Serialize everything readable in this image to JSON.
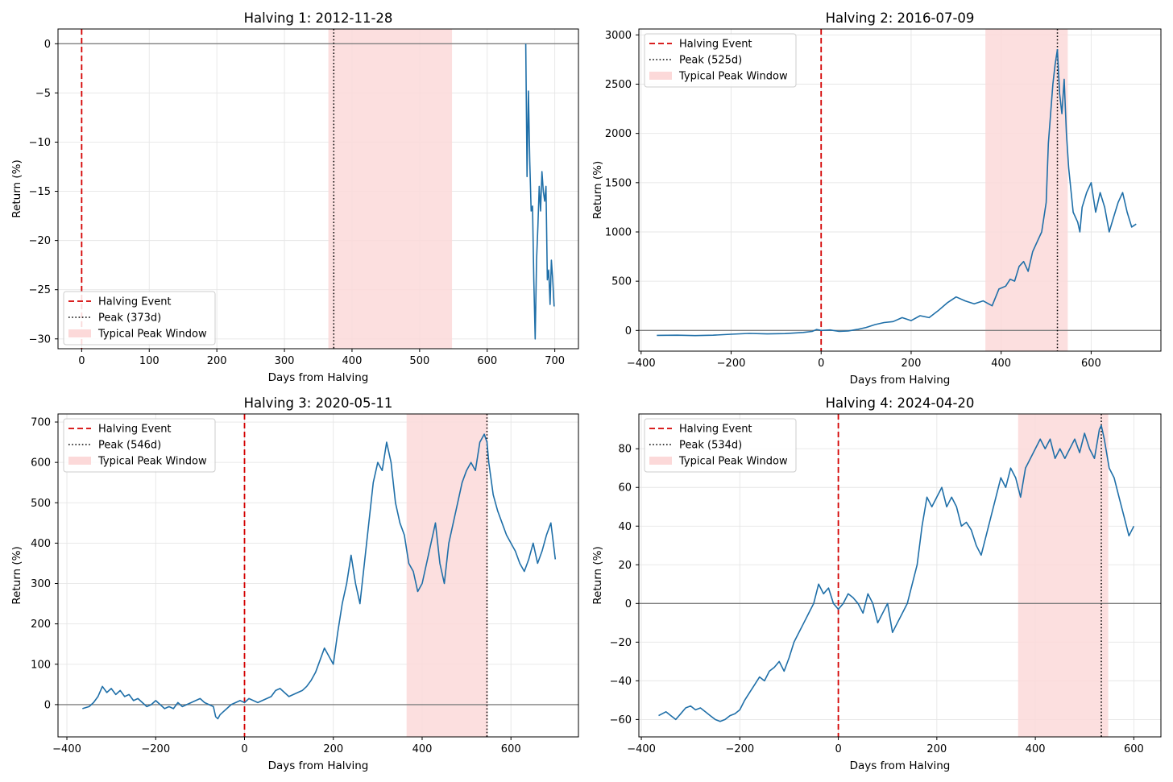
{
  "figure": {
    "colors": {
      "series": "#1f6fa8",
      "halving_line": "#d40000",
      "peak_line": "#000000",
      "window_fill": "#fcd9d9",
      "zero_line": "#808080",
      "grid": "#e6e6e6"
    }
  },
  "chart_data": [
    {
      "type": "line",
      "title": "Halving 1: 2012-11-28",
      "xlabel": "Days from Halving",
      "ylabel": "Return (%)",
      "xlim": [
        -35,
        735
      ],
      "ylim": [
        -31,
        1.5
      ],
      "xticks": [
        0,
        100,
        200,
        300,
        400,
        500,
        600,
        700
      ],
      "yticks": [
        0,
        -5,
        -10,
        -15,
        -20,
        -25,
        -30
      ],
      "grid": true,
      "legend": {
        "placement": "lower-left",
        "labels": [
          "Halving Event",
          "Peak (373d)",
          "Typical Peak Window"
        ]
      },
      "halving_day": 0,
      "peak_day": 373,
      "peak_window": [
        365,
        548
      ],
      "series": [
        {
          "x": [
            657,
            659,
            661,
            663,
            665,
            667,
            669,
            671,
            673,
            675,
            677,
            679,
            681,
            683,
            685,
            687,
            689,
            691,
            693,
            695,
            697,
            699
          ],
          "y": [
            0,
            -13.5,
            -4.8,
            -12,
            -17,
            -16.5,
            -24,
            -30,
            -22,
            -18.5,
            -14.5,
            -17,
            -13,
            -15,
            -16,
            -14.5,
            -24,
            -23,
            -26.5,
            -22,
            -24,
            -26.7
          ]
        }
      ]
    },
    {
      "type": "line",
      "title": "Halving 2: 2016-07-09",
      "xlabel": "Days from Halving",
      "ylabel": "Return (%)",
      "xlim": [
        -405,
        755
      ],
      "ylim": [
        -210,
        3060
      ],
      "xticks": [
        -400,
        -200,
        0,
        200,
        400,
        600
      ],
      "yticks": [
        0,
        500,
        1000,
        1500,
        2000,
        2500,
        3000
      ],
      "grid": true,
      "legend": {
        "placement": "top-left",
        "labels": [
          "Halving Event",
          "Peak (525d)",
          "Typical Peak Window"
        ]
      },
      "halving_day": 0,
      "peak_day": 525,
      "peak_window": [
        365,
        548
      ],
      "series": [
        {
          "x": [
            -365,
            -320,
            -280,
            -240,
            -200,
            -160,
            -120,
            -80,
            -40,
            -20,
            -10,
            0,
            20,
            40,
            60,
            80,
            100,
            120,
            140,
            160,
            180,
            200,
            220,
            240,
            260,
            280,
            300,
            320,
            340,
            360,
            380,
            395,
            410,
            420,
            430,
            440,
            450,
            460,
            470,
            480,
            490,
            500,
            505,
            510,
            515,
            520,
            525,
            530,
            535,
            540,
            545,
            550,
            560,
            570,
            575,
            580,
            590,
            600,
            610,
            620,
            630,
            640,
            650,
            660,
            670,
            680,
            690,
            700
          ],
          "y": [
            -50,
            -48,
            -52,
            -48,
            -38,
            -30,
            -35,
            -32,
            -20,
            -10,
            10,
            0,
            5,
            -10,
            -5,
            10,
            30,
            60,
            80,
            90,
            130,
            100,
            150,
            130,
            200,
            280,
            340,
            300,
            270,
            300,
            250,
            420,
            450,
            520,
            500,
            650,
            700,
            600,
            800,
            900,
            1000,
            1300,
            1900,
            2200,
            2500,
            2700,
            2850,
            2400,
            2200,
            2550,
            2000,
            1650,
            1200,
            1100,
            1000,
            1250,
            1400,
            1500,
            1200,
            1400,
            1250,
            1000,
            1150,
            1300,
            1400,
            1200,
            1050,
            1080
          ]
        }
      ]
    },
    {
      "type": "line",
      "title": "Halving 3: 2020-05-11",
      "xlabel": "Days from Halving",
      "ylabel": "Return (%)",
      "xlim": [
        -420,
        752
      ],
      "ylim": [
        -80,
        720
      ],
      "xticks": [
        -400,
        -200,
        0,
        200,
        400,
        600
      ],
      "yticks": [
        0,
        100,
        200,
        300,
        400,
        500,
        600,
        700
      ],
      "grid": true,
      "legend": {
        "placement": "top-left",
        "labels": [
          "Halving Event",
          "Peak (546d)",
          "Typical Peak Window"
        ]
      },
      "halving_day": 0,
      "peak_day": 546,
      "peak_window": [
        365,
        548
      ],
      "series": [
        {
          "x": [
            -365,
            -350,
            -340,
            -330,
            -320,
            -310,
            -300,
            -290,
            -280,
            -270,
            -260,
            -250,
            -240,
            -230,
            -220,
            -210,
            -200,
            -190,
            -180,
            -170,
            -160,
            -150,
            -140,
            -130,
            -120,
            -110,
            -100,
            -90,
            -80,
            -70,
            -65,
            -60,
            -55,
            -50,
            -40,
            -30,
            -20,
            -10,
            0,
            10,
            20,
            30,
            40,
            50,
            60,
            70,
            80,
            90,
            100,
            110,
            120,
            130,
            140,
            150,
            160,
            170,
            180,
            190,
            200,
            210,
            220,
            230,
            240,
            250,
            260,
            270,
            280,
            290,
            300,
            310,
            320,
            330,
            340,
            350,
            360,
            370,
            380,
            390,
            400,
            410,
            420,
            430,
            440,
            450,
            460,
            470,
            480,
            490,
            500,
            510,
            520,
            530,
            540,
            546,
            550,
            560,
            570,
            580,
            590,
            600,
            610,
            620,
            630,
            640,
            650,
            660,
            670,
            680,
            690,
            700
          ],
          "y": [
            -10,
            -5,
            5,
            20,
            45,
            30,
            40,
            25,
            35,
            20,
            25,
            10,
            15,
            5,
            -5,
            0,
            10,
            0,
            -10,
            -5,
            -10,
            5,
            -5,
            0,
            5,
            10,
            15,
            5,
            0,
            -5,
            -30,
            -35,
            -25,
            -20,
            -10,
            0,
            5,
            10,
            5,
            15,
            10,
            5,
            10,
            15,
            20,
            35,
            40,
            30,
            20,
            25,
            30,
            35,
            45,
            60,
            80,
            110,
            140,
            120,
            100,
            180,
            250,
            300,
            370,
            300,
            250,
            350,
            450,
            550,
            600,
            580,
            650,
            600,
            500,
            450,
            420,
            350,
            330,
            280,
            300,
            350,
            400,
            450,
            350,
            300,
            400,
            450,
            500,
            550,
            580,
            600,
            580,
            650,
            670,
            650,
            600,
            520,
            480,
            450,
            420,
            400,
            380,
            350,
            330,
            360,
            400,
            350,
            380,
            420,
            450,
            360
          ]
        }
      ]
    },
    {
      "type": "line",
      "title": "Halving 4: 2024-04-20",
      "xlabel": "Days from Halving",
      "ylabel": "Return (%)",
      "xlim": [
        -405,
        655
      ],
      "ylim": [
        -69,
        98
      ],
      "xticks": [
        -400,
        -200,
        0,
        200,
        400,
        600
      ],
      "yticks": [
        -60,
        -40,
        -20,
        0,
        20,
        40,
        60,
        80
      ],
      "grid": true,
      "legend": {
        "placement": "top-left",
        "labels": [
          "Halving Event",
          "Peak (534d)",
          "Typical Peak Window"
        ]
      },
      "halving_day": 0,
      "peak_day": 534,
      "peak_window": [
        365,
        548
      ],
      "series": [
        {
          "x": [
            -365,
            -350,
            -340,
            -330,
            -320,
            -310,
            -300,
            -290,
            -280,
            -270,
            -260,
            -250,
            -240,
            -230,
            -220,
            -210,
            -200,
            -190,
            -180,
            -170,
            -160,
            -150,
            -140,
            -130,
            -120,
            -110,
            -100,
            -90,
            -80,
            -70,
            -60,
            -50,
            -40,
            -30,
            -20,
            -10,
            0,
            10,
            20,
            30,
            40,
            50,
            60,
            70,
            80,
            90,
            100,
            110,
            120,
            130,
            140,
            150,
            160,
            170,
            180,
            190,
            200,
            210,
            220,
            230,
            240,
            250,
            260,
            270,
            280,
            290,
            300,
            310,
            320,
            330,
            340,
            350,
            360,
            370,
            380,
            390,
            400,
            410,
            420,
            430,
            440,
            450,
            460,
            470,
            480,
            490,
            500,
            510,
            520,
            530,
            534,
            540,
            550,
            560,
            570,
            580,
            590,
            600
          ],
          "y": [
            -58,
            -56,
            -58,
            -60,
            -57,
            -54,
            -53,
            -55,
            -54,
            -56,
            -58,
            -60,
            -61,
            -60,
            -58,
            -57,
            -55,
            -50,
            -46,
            -42,
            -38,
            -40,
            -35,
            -33,
            -30,
            -35,
            -28,
            -20,
            -15,
            -10,
            -5,
            0,
            10,
            5,
            8,
            0,
            -3,
            0,
            5,
            3,
            0,
            -5,
            5,
            0,
            -10,
            -5,
            0,
            -15,
            -10,
            -5,
            0,
            10,
            20,
            40,
            55,
            50,
            55,
            60,
            50,
            55,
            50,
            40,
            42,
            38,
            30,
            25,
            35,
            45,
            55,
            65,
            60,
            70,
            65,
            55,
            70,
            75,
            80,
            85,
            80,
            85,
            75,
            80,
            75,
            80,
            85,
            78,
            88,
            80,
            75,
            90,
            92,
            85,
            70,
            65,
            55,
            45,
            35,
            40
          ]
        }
      ]
    }
  ]
}
